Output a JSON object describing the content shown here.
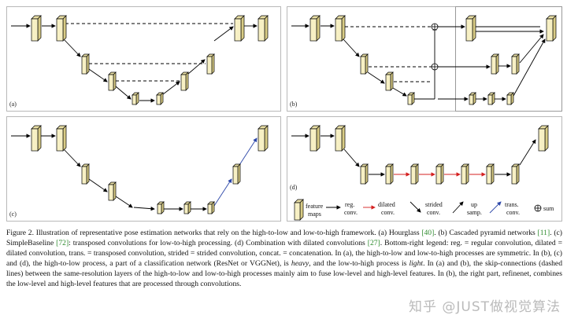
{
  "panels": {
    "a": "(a)",
    "b": "(b)",
    "c": "(c)",
    "d": "(d)"
  },
  "legend": {
    "feature_maps": [
      "feature",
      "maps"
    ],
    "reg_conv": [
      "reg.",
      "conv."
    ],
    "dilated_conv": [
      "dilated",
      "conv."
    ],
    "strided_conv": [
      "strided",
      "conv."
    ],
    "up_samp": [
      "up",
      "samp."
    ],
    "trans_conv": [
      "trans.",
      "conv."
    ],
    "sum": "sum",
    "colors": {
      "dilated": "#d42020",
      "trans": "#2b46a8",
      "reg": "#000000",
      "block": "#f7f0c4"
    }
  },
  "caption": {
    "prefix": "Figure 2. Illustration of representative pose estimation networks that rely on the high-to-low and low-to-high framework. (a) Hourglass ",
    "cite_40": "[40]",
    "b1": ". (b) Cascaded pyramid networks ",
    "cite_11": "[11]",
    "b2": ". (c) SimpleBaseline ",
    "cite_72": "[72]",
    "b3": ": transposed convolutions for low-to-high processing. (d) Combination with dilated convolutions ",
    "cite_27": "[27]",
    "b4": ". Bottom-right legend: reg. = regular convolution, dilated = dilated convolution, trans. = transposed convolution, strided = strided convolution, concat. = concatenation. In (a), the high-to-low and low-to-high processes are symmetric. In (b), (c) and (d), the high-to-low process, a part of a classification network (ResNet or VGGNet), is ",
    "heavy": "heavy",
    "b5": ", and the low-to-high process is ",
    "light": "light",
    "b6": ". In (a) and (b), the skip-connections (dashed lines) between the same-resolution layers of the high-to-low and low-to-high processes mainly aim to fuse low-level and high-level features. In (b), the right part, refinenet, combines the low-level and high-level features that are processed through convolutions."
  },
  "watermark": "知乎 @JUST做视觉算法"
}
